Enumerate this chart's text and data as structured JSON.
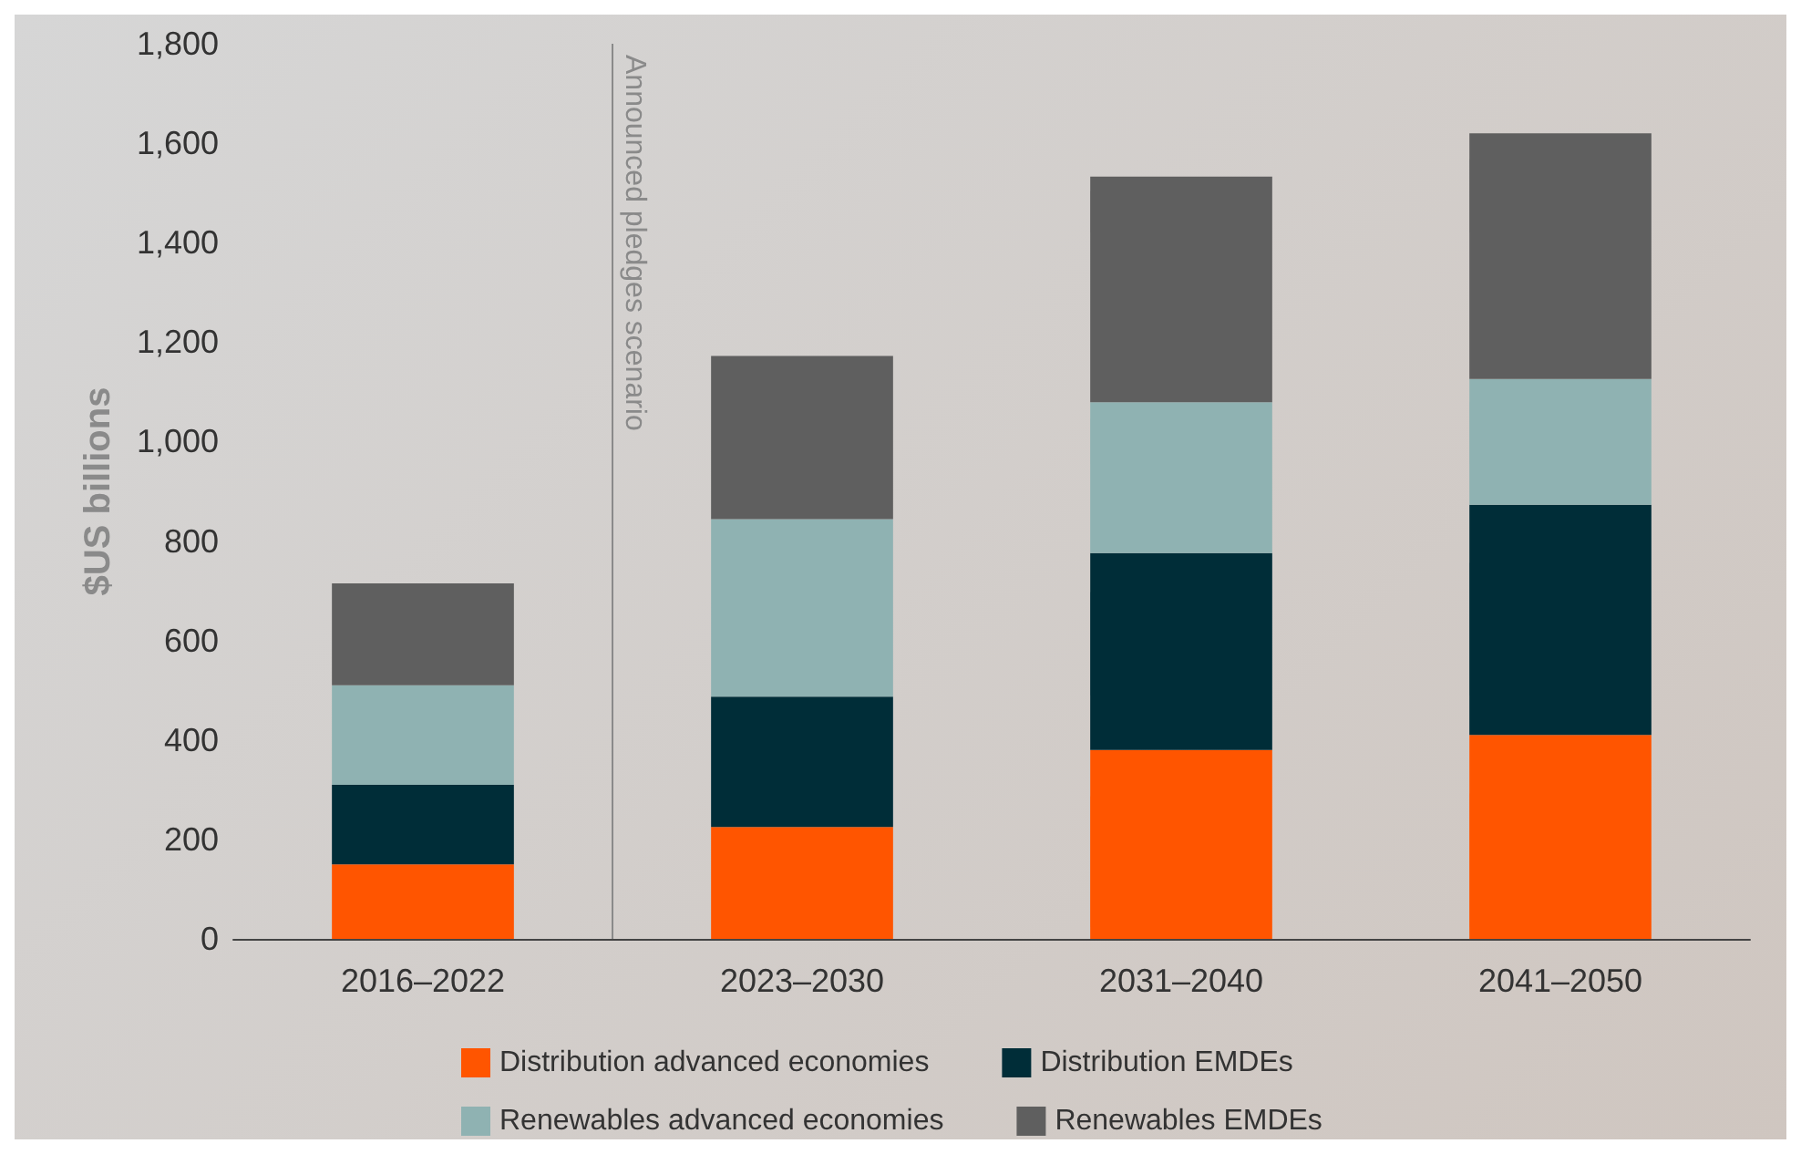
{
  "chart_data": {
    "type": "bar",
    "stacked": true,
    "ylabel": "$US billions",
    "categories": [
      "2016–2022",
      "2023–2030",
      "2031–2040",
      "2041–2050"
    ],
    "series": [
      {
        "name": "Distribution advanced economies",
        "color": "#ff5500",
        "values": [
          150,
          225,
          380,
          410
        ]
      },
      {
        "name": "Distribution EMDEs",
        "color": "#002d38",
        "values": [
          160,
          262,
          396,
          463
        ]
      },
      {
        "name": "Renewables advanced economies",
        "color": "#8fb2b2",
        "values": [
          200,
          357,
          303,
          253
        ]
      },
      {
        "name": "Renewables EMDEs",
        "color": "#5f5f5f",
        "values": [
          205,
          328,
          454,
          494
        ]
      }
    ],
    "ylim": [
      0,
      1800
    ],
    "yticks": [
      0,
      200,
      400,
      600,
      800,
      {
        "value": 1000,
        "label": "1,000"
      },
      {
        "value": 1200,
        "label": "1,200"
      },
      {
        "value": 1400,
        "label": "1,400"
      },
      {
        "value": 1600,
        "label": "1,600"
      },
      {
        "value": 1800,
        "label": "1,800"
      }
    ],
    "grid": false,
    "legend": "bottom",
    "annotations": [
      "Announced pledges scenario"
    ]
  }
}
